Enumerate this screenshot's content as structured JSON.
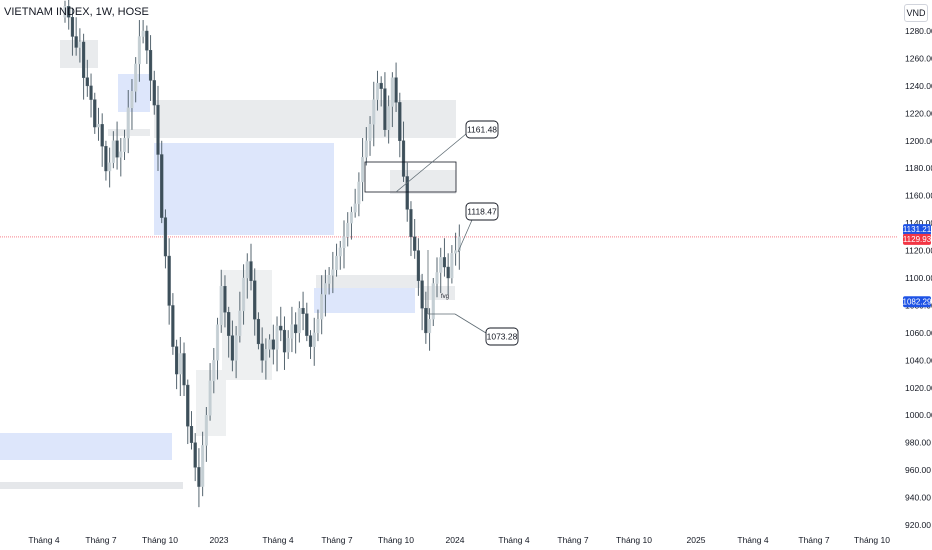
{
  "header": {
    "title": "VIETNAM INDEX, 1W, HOSE",
    "unit": "VND"
  },
  "chart_data": {
    "type": "candlestick",
    "title": "VIETNAM INDEX, 1W, HOSE",
    "y_unit": "VND",
    "ylim": [
      915,
      1300
    ],
    "y_ticks": [
      920,
      940,
      960,
      980,
      1000,
      1020,
      1040,
      1060,
      1080,
      1100,
      1120,
      1140,
      1160,
      1180,
      1200,
      1220,
      1240,
      1260,
      1280
    ],
    "x_tick_labels": [
      "Tháng 4",
      "Tháng 7",
      "Tháng 10",
      "2023",
      "Tháng 4",
      "Tháng 7",
      "Tháng 10",
      "2024",
      "Tháng 4",
      "Tháng 7",
      "Tháng 10",
      "2025",
      "Tháng 4",
      "Tháng 7",
      "Tháng 10"
    ],
    "price_labels": {
      "upper": "1131.21",
      "current": "1129.93",
      "lower": "1082.29"
    },
    "current_price": 1129.93,
    "annotations": [
      {
        "label": "1161.48",
        "value": 1161.48
      },
      {
        "label": "1118.47",
        "value": 1118.47
      },
      {
        "label": "1073.28",
        "value": 1073.28
      }
    ],
    "weekly_closes": [
      1298,
      1290,
      1276,
      1268,
      1272,
      1246,
      1240,
      1230,
      1210,
      1212,
      1196,
      1178,
      1184,
      1200,
      1188,
      1192,
      1202,
      1224,
      1236,
      1256,
      1276,
      1280,
      1266,
      1244,
      1226,
      1190,
      1144,
      1116,
      1080,
      1050,
      1030,
      1045,
      1022,
      992,
      980,
      962,
      948,
      978,
      1000,
      1025,
      1040,
      1066,
      1094,
      1075,
      1058,
      1040,
      1058,
      1076,
      1100,
      1112,
      1098,
      1070,
      1052,
      1040,
      1048,
      1055,
      1048,
      1065,
      1062,
      1046,
      1056,
      1066,
      1060,
      1078,
      1074,
      1058,
      1050,
      1060,
      1070,
      1088,
      1096,
      1102,
      1106,
      1116,
      1122,
      1130,
      1140,
      1148,
      1154,
      1170,
      1188,
      1200,
      1212,
      1230,
      1242,
      1238,
      1208,
      1225,
      1246,
      1228,
      1200,
      1174,
      1150,
      1130,
      1120,
      1098,
      1078,
      1060,
      1070,
      1096,
      1104,
      1115,
      1108,
      1100,
      1118,
      1120,
      1130
    ]
  }
}
